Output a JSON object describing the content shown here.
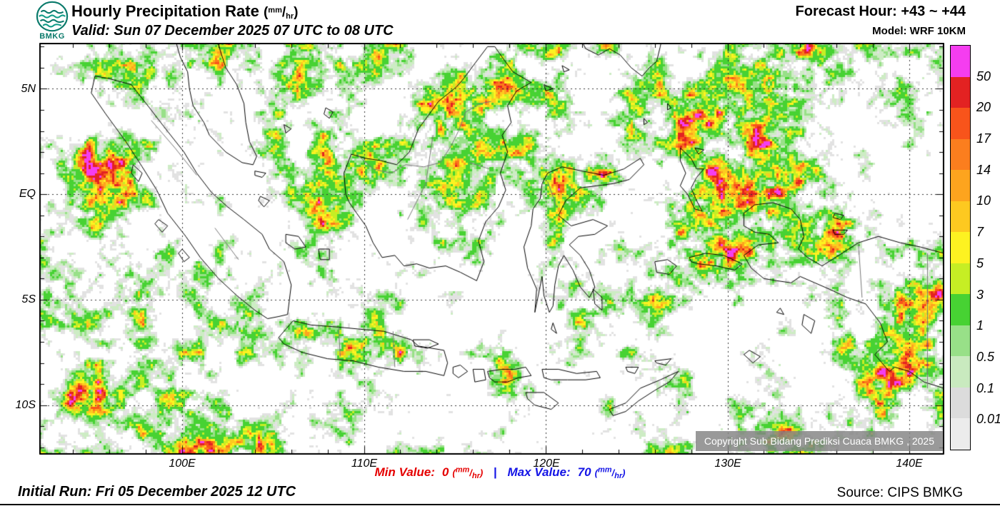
{
  "header": {
    "logo_text": "BMKG",
    "title_main": "Hourly Precipitation Rate",
    "valid": "Valid: Sun 07 December 2025 07 UTC to 08 UTC",
    "forecast_hour": "Forecast Hour: +43 ~ +44",
    "model": "Model: WRF 10KM"
  },
  "units": {
    "open": "(",
    "num": "mm",
    "slash": "/",
    "den": "hr",
    "close": ")"
  },
  "map": {
    "lat_labels": [
      "5N",
      "EQ",
      "5S",
      "10S"
    ],
    "lon_labels": [
      "100E",
      "110E",
      "120E",
      "130E",
      "140E"
    ],
    "copyright": "Copyright Sub Bidang Prediksi Cuaca BMKG , 2025"
  },
  "colorbar": {
    "labels": [
      "50",
      "20",
      "17",
      "14",
      "10",
      "7",
      "5",
      "3",
      "1",
      "0.5",
      "0.1",
      "0.01"
    ],
    "colors": [
      "#f53df0",
      "#e32222",
      "#f8541b",
      "#fb7e1e",
      "#fda41e",
      "#fdc920",
      "#fdf221",
      "#c6ee24",
      "#47d233",
      "#98e088",
      "#c9eabf",
      "#dcdcdc",
      "#ececec"
    ]
  },
  "footer": {
    "min_label": "Min Value:",
    "min_value": "0",
    "separator": "|",
    "max_label": "Max Value:",
    "max_value": "70",
    "initial_run": "Initial Run: Fri 05 December 2025 12 UTC",
    "source": "Source: CIPS BMKG"
  },
  "colors": {
    "accent_min": "#e50000",
    "accent_max": "#1414e6",
    "logo_teal": "#0a7a6b"
  }
}
